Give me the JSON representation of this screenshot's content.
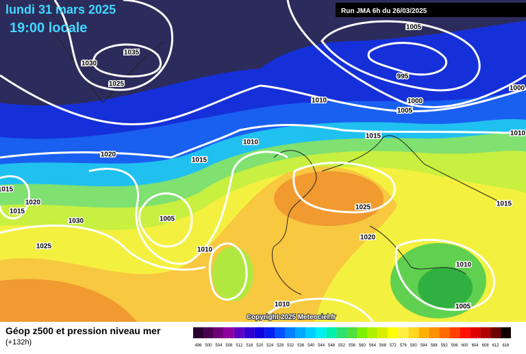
{
  "header": {
    "date": "lundi 31 mars 2025",
    "time": "19:00 locale",
    "run": "Run JMA 6h du 26/03/2025"
  },
  "isobar_labels": [
    "1030",
    "1035",
    "1025",
    "1005",
    "995",
    "1000",
    "1000",
    "1005",
    "1010",
    "1010",
    "1015",
    "1020",
    "1015",
    "1015",
    "1020",
    "1015",
    "1030",
    "1005",
    "1025",
    "1020",
    "1025",
    "1010",
    "1015",
    "1010",
    "1005",
    "1010",
    "1010"
  ],
  "copyright": "Copyright 2025 Meteociel.fr",
  "footer": {
    "title": "Géop z500 et pression niveau mer",
    "lead": "(+132h)"
  },
  "legend": {
    "labels": [
      496,
      500,
      504,
      508,
      512,
      516,
      520,
      524,
      528,
      532,
      536,
      540,
      544,
      548,
      552,
      556,
      560,
      564,
      568,
      572,
      576,
      580,
      584,
      588,
      592,
      596,
      600,
      604,
      608,
      612,
      616
    ],
    "colors": [
      "#2a0030",
      "#4a0050",
      "#70007a",
      "#9000a0",
      "#6000c0",
      "#3000d0",
      "#1000e0",
      "#0020f0",
      "#0050ff",
      "#0080ff",
      "#00a8ff",
      "#00d0ff",
      "#00f0f0",
      "#00f0b0",
      "#30e070",
      "#50e040",
      "#80f000",
      "#b0f000",
      "#d8f000",
      "#ffff00",
      "#fff040",
      "#ffd820",
      "#ffb000",
      "#ff9000",
      "#ff6a00",
      "#ff4000",
      "#ff1000",
      "#e00000",
      "#b00000",
      "#700000",
      "#100000"
    ]
  }
}
